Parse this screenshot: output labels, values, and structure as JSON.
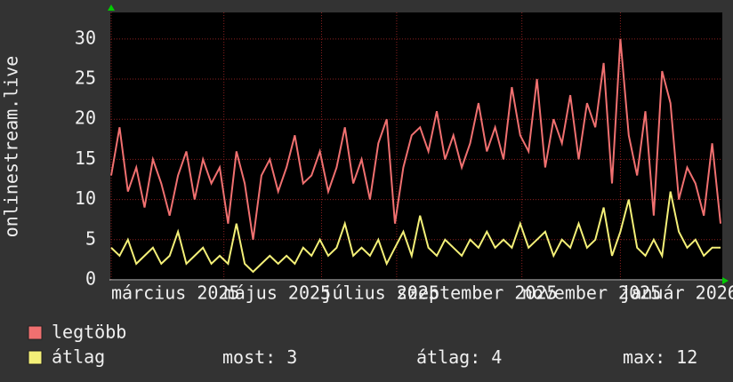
{
  "chart_data": {
    "type": "line",
    "y_label": "onlinestream.live",
    "xlim": [
      0,
      73
    ],
    "xticks": [
      {
        "value": 0,
        "label": "március 2025"
      },
      {
        "value": 13.5,
        "label": "május 2025"
      },
      {
        "value": 25.2,
        "label": "július 2025"
      },
      {
        "value": 34.2,
        "label": "szeptember 2025"
      },
      {
        "value": 49.2,
        "label": "november 2025"
      },
      {
        "value": 61,
        "label": "január 2026"
      }
    ],
    "ylim": [
      0,
      33.3
    ],
    "yticks": [
      0,
      5,
      10,
      15,
      20,
      25,
      30
    ],
    "grid": true,
    "series": [
      {
        "name": "legtöbb",
        "color": "#f07070",
        "values": [
          13,
          19,
          11,
          14,
          9,
          15,
          12,
          8,
          13,
          16,
          10,
          15,
          12,
          14,
          7,
          16,
          12,
          5,
          13,
          15,
          11,
          14,
          18,
          12,
          13,
          16,
          11,
          14,
          19,
          12,
          15,
          10,
          17,
          20,
          7,
          14,
          18,
          19,
          16,
          21,
          15,
          18,
          14,
          17,
          22,
          16,
          19,
          15,
          24,
          18,
          16,
          25,
          14,
          20,
          17,
          23,
          15,
          22,
          19,
          27,
          12,
          30,
          18,
          13,
          21,
          8,
          26,
          22,
          10,
          14,
          12,
          8,
          17,
          7
        ]
      },
      {
        "name": "átlag",
        "color": "#f4f078",
        "values": [
          4,
          3,
          5,
          2,
          3,
          4,
          2,
          3,
          6,
          2,
          3,
          4,
          2,
          3,
          2,
          7,
          2,
          1,
          2,
          3,
          2,
          3,
          2,
          4,
          3,
          5,
          3,
          4,
          7,
          3,
          4,
          3,
          5,
          2,
          4,
          6,
          3,
          8,
          4,
          3,
          5,
          4,
          3,
          5,
          4,
          6,
          4,
          5,
          4,
          7,
          4,
          5,
          6,
          3,
          5,
          4,
          7,
          4,
          5,
          9,
          3,
          6,
          10,
          4,
          3,
          5,
          3,
          11,
          6,
          4,
          5,
          3,
          4,
          4
        ]
      }
    ],
    "stats": [
      {
        "label": "most:",
        "value": 3
      },
      {
        "label": "átlag:",
        "value": 4
      },
      {
        "label": "max:",
        "value": 12
      }
    ]
  }
}
